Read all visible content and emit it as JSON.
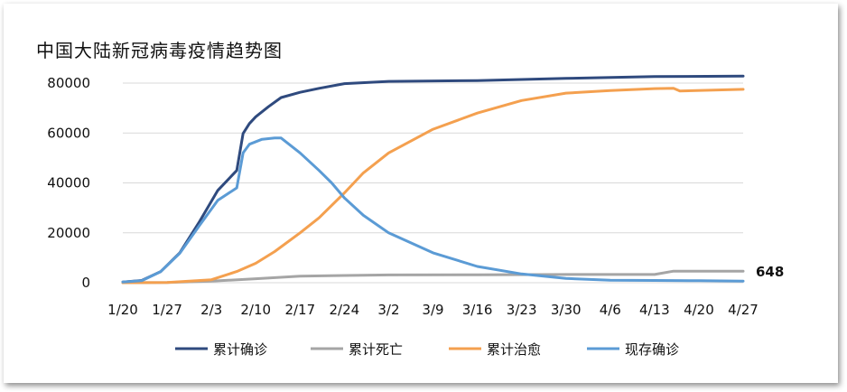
{
  "chart_data": {
    "type": "line",
    "title": "中国大陆新冠病毒疫情趋势图",
    "xlabel": "",
    "ylabel": "",
    "ylim": [
      0,
      80000
    ],
    "yticks": [
      "0",
      "20000",
      "40000",
      "60000",
      "80000"
    ],
    "x_tick_labels": [
      "1/20",
      "1/27",
      "2/3",
      "2/10",
      "2/17",
      "2/24",
      "3/2",
      "3/9",
      "3/16",
      "3/23",
      "3/30",
      "4/6",
      "4/13",
      "4/20",
      "4/27"
    ],
    "grid": "horizontal",
    "legend_position": "bottom",
    "annotation": {
      "label": "648",
      "series": "现存确诊"
    },
    "series": [
      {
        "name": "累计确诊",
        "color": "#2f4a7e",
        "points": [
          [
            0,
            300
          ],
          [
            3,
            900
          ],
          [
            6,
            4500
          ],
          [
            9,
            12000
          ],
          [
            12,
            24000
          ],
          [
            15,
            37000
          ],
          [
            18,
            45000
          ],
          [
            19,
            59800
          ],
          [
            20,
            63800
          ],
          [
            21,
            66500
          ],
          [
            23,
            70500
          ],
          [
            25,
            74200
          ],
          [
            28,
            76300
          ],
          [
            31,
            77900
          ],
          [
            35,
            79800
          ],
          [
            42,
            80700
          ],
          [
            56,
            81000
          ],
          [
            70,
            81900
          ],
          [
            84,
            82600
          ],
          [
            98,
            82800
          ]
        ]
      },
      {
        "name": "累计死亡",
        "color": "#a5a5a5",
        "points": [
          [
            0,
            0
          ],
          [
            7,
            100
          ],
          [
            14,
            600
          ],
          [
            21,
            1600
          ],
          [
            28,
            2600
          ],
          [
            35,
            2900
          ],
          [
            42,
            3100
          ],
          [
            56,
            3200
          ],
          [
            70,
            3300
          ],
          [
            84,
            3300
          ],
          [
            87,
            4630
          ],
          [
            98,
            4640
          ]
        ]
      },
      {
        "name": "累计治愈",
        "color": "#f4a04f",
        "points": [
          [
            0,
            0
          ],
          [
            7,
            100
          ],
          [
            14,
            1200
          ],
          [
            18,
            4500
          ],
          [
            21,
            7800
          ],
          [
            24,
            12500
          ],
          [
            28,
            20000
          ],
          [
            31,
            26000
          ],
          [
            35,
            36000
          ],
          [
            38,
            44000
          ],
          [
            42,
            52000
          ],
          [
            49,
            61500
          ],
          [
            56,
            68000
          ],
          [
            63,
            73000
          ],
          [
            70,
            76000
          ],
          [
            77,
            77000
          ],
          [
            84,
            77800
          ],
          [
            87,
            77900
          ],
          [
            88,
            76800
          ],
          [
            98,
            77500
          ]
        ]
      },
      {
        "name": "现存确诊",
        "color": "#5b9bd5",
        "points": [
          [
            0,
            300
          ],
          [
            3,
            800
          ],
          [
            6,
            4500
          ],
          [
            9,
            11800
          ],
          [
            12,
            22500
          ],
          [
            15,
            33000
          ],
          [
            18,
            38000
          ],
          [
            19,
            52000
          ],
          [
            20,
            55500
          ],
          [
            22,
            57500
          ],
          [
            24,
            58000
          ],
          [
            25,
            58000
          ],
          [
            28,
            52000
          ],
          [
            31,
            45000
          ],
          [
            33,
            40000
          ],
          [
            35,
            34000
          ],
          [
            38,
            27000
          ],
          [
            42,
            20000
          ],
          [
            49,
            12000
          ],
          [
            56,
            6500
          ],
          [
            63,
            3500
          ],
          [
            70,
            1700
          ],
          [
            77,
            1000
          ],
          [
            84,
            900
          ],
          [
            91,
            800
          ],
          [
            98,
            648
          ]
        ]
      }
    ]
  }
}
